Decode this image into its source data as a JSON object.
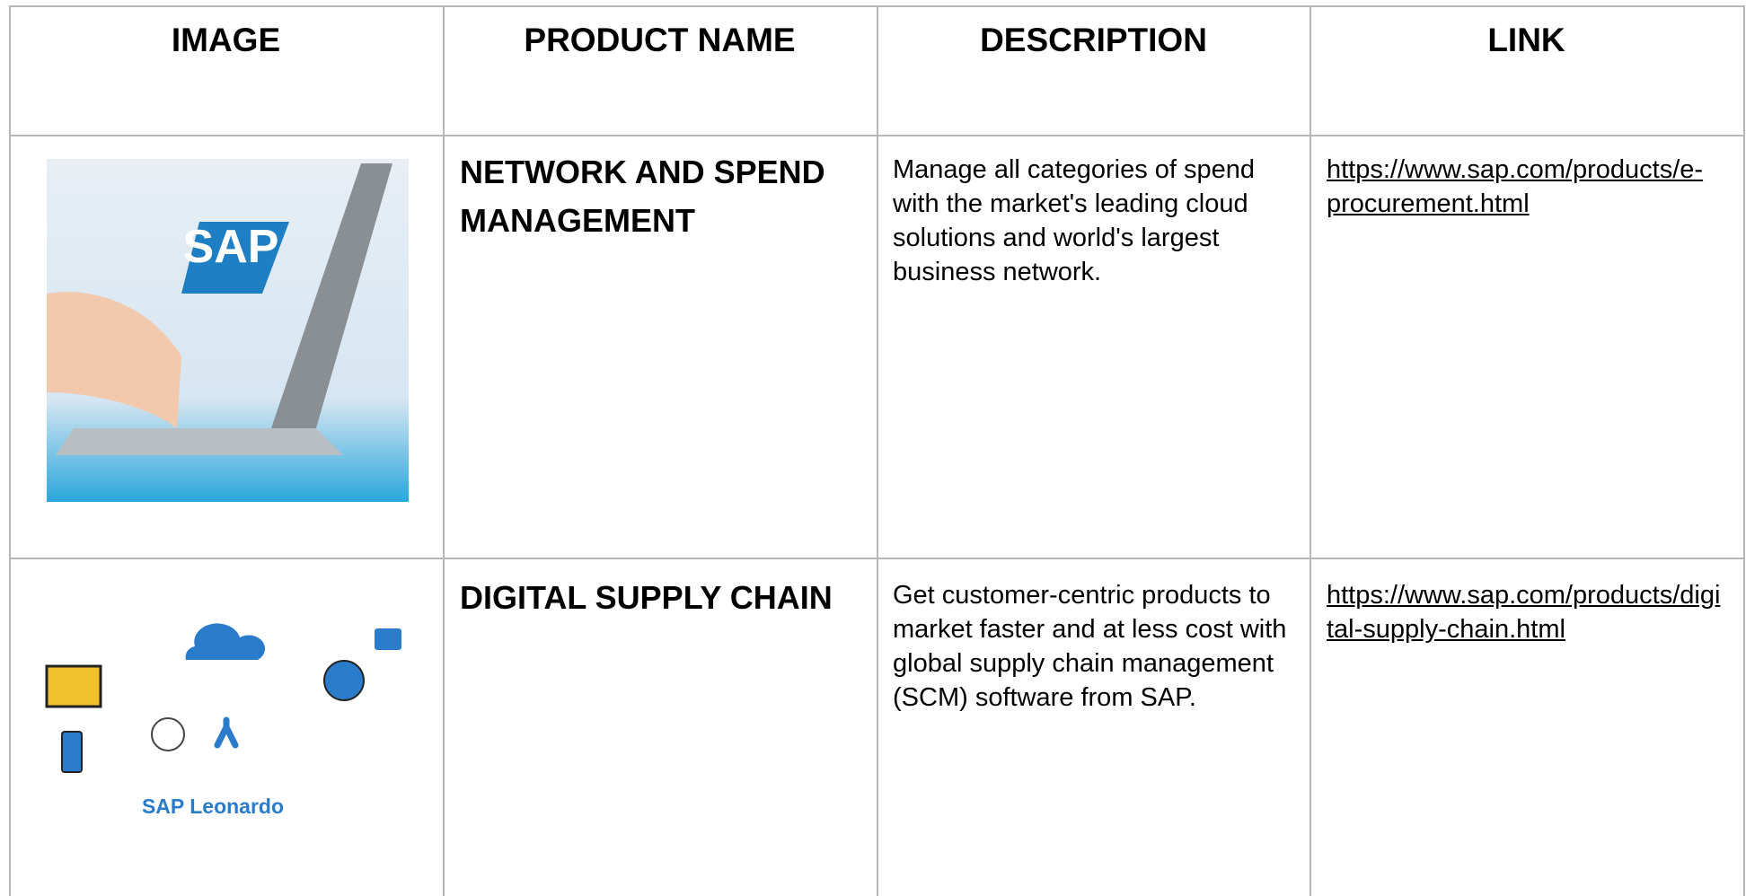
{
  "table": {
    "columns": [
      "IMAGE",
      "PRODUCT NAME",
      "DESCRIPTION",
      "LINK"
    ],
    "rows": [
      {
        "image_text": "SAP",
        "product_name": "NETWORK AND SPEND MANAGEMENT",
        "description": "Manage all categories of spend with the market's leading cloud solutions and world's largest business network.",
        "link": "https://www.sap.com/products/e-procurement.html"
      },
      {
        "image_text": "SAP Leonardo",
        "product_name": "DIGITAL SUPPLY CHAIN",
        "description": "Get customer-centric products to market faster and at less cost with global supply chain management (SCM) software from SAP.",
        "link": "https://www.sap.com/products/digital-supply-chain.html"
      }
    ]
  }
}
